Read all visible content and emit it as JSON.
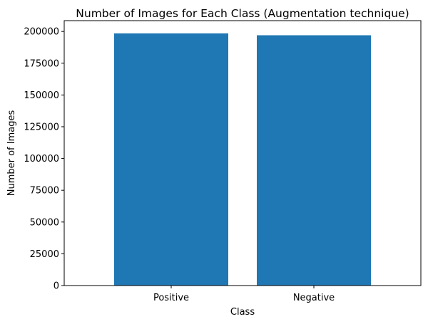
{
  "chart_data": {
    "type": "bar",
    "title": "Number of Images for Each Class (Augmentation technique)",
    "xlabel": "Class",
    "ylabel": "Number of Images",
    "categories": [
      "Positive",
      "Negative"
    ],
    "values": [
      198500,
      197000
    ],
    "ylim": [
      0,
      208500
    ],
    "yticks": [
      0,
      25000,
      50000,
      75000,
      100000,
      125000,
      150000,
      175000,
      200000
    ],
    "grid": false,
    "bar_color": "#1f77b4"
  }
}
